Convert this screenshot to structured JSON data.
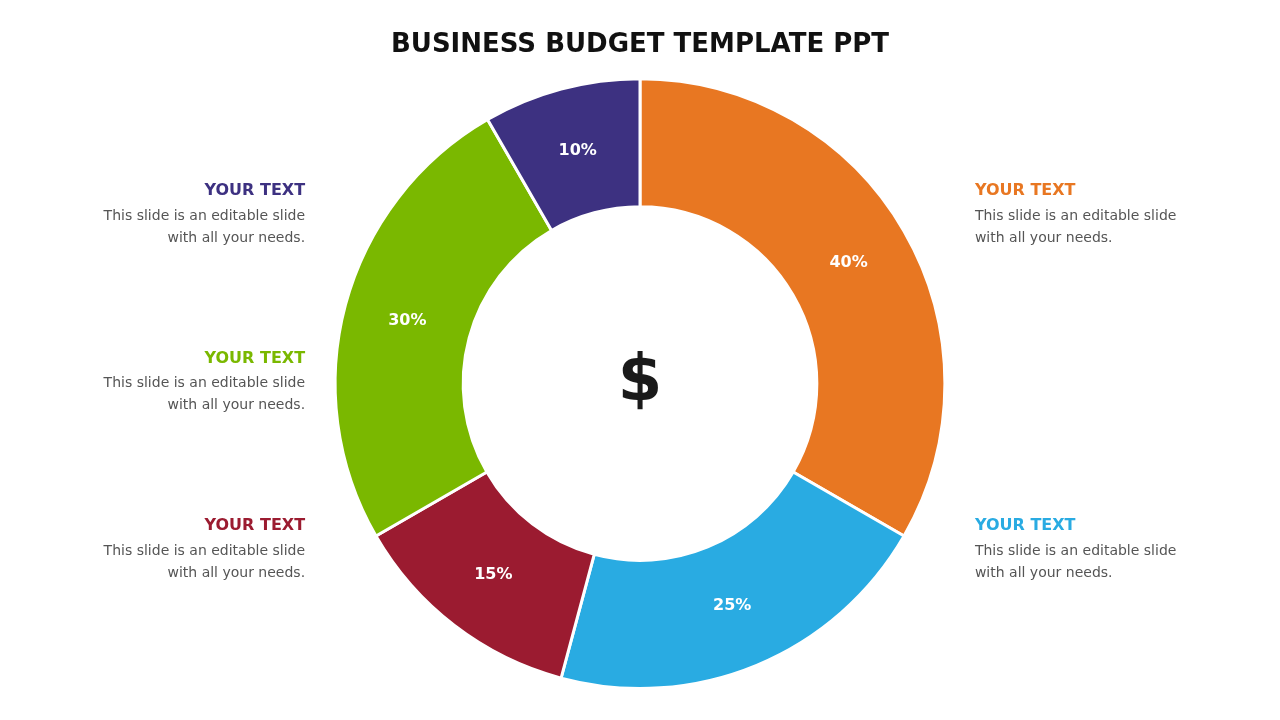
{
  "chart_data": {
    "type": "doughnut",
    "title": "BUSINESS BUDGET TEMPLATE PPT",
    "categories": [
      null,
      null,
      null,
      null,
      null
    ],
    "values": [
      40,
      25,
      15,
      30,
      10
    ],
    "value_labels": [
      "40%",
      "25%",
      "15%",
      "30%",
      "10%"
    ],
    "colors": [
      "#E87722",
      "#29ABE2",
      "#9B1B30",
      "#7AB800",
      "#3D3181"
    ],
    "data_labels": true,
    "legend": false,
    "annotations": [
      {
        "heading": "YOUR TEXT",
        "color": "#3D3181",
        "text": "This slide is an editable slide\nwith all your needs."
      },
      {
        "heading": "YOUR TEXT",
        "color": "#7AB800",
        "text": "This slide is an editable slide\nwith all your needs."
      },
      {
        "heading": "YOUR TEXT",
        "color": "#9B1B30",
        "text": "This slide is an editable slide\nwith all your needs."
      },
      {
        "heading": "YOUR TEXT",
        "color": "#E87722",
        "text": "This slide is an editable slide\nwith all your needs."
      },
      {
        "heading": "YOUR TEXT",
        "color": "#29ABE2",
        "text": "This slide is an editable slide\nwith all your needs."
      },
      {
        "text": "$"
      }
    ]
  }
}
